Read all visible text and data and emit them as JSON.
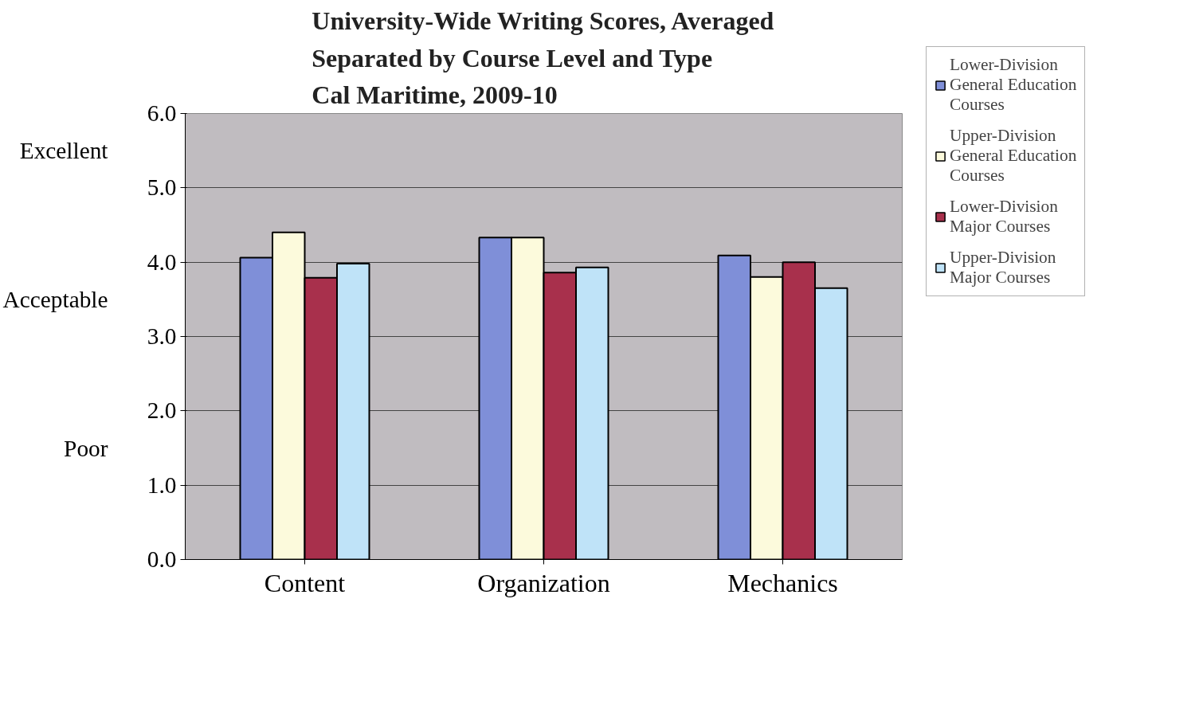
{
  "chart_data": {
    "type": "bar",
    "title": "University-Wide Writing Scores, Averaged\nSeparated by Course Level and Type\nCal Maritime, 2009-10",
    "categories": [
      "Content",
      "Organization",
      "Mechanics"
    ],
    "series": [
      {
        "name": "Lower-Division\nGeneral Education\nCourses",
        "color": "#7f8fd8",
        "values": [
          4.06,
          4.33,
          4.09
        ]
      },
      {
        "name": "Upper-Division\nGeneral Education\nCourses",
        "color": "#fcfadc",
        "values": [
          4.4,
          4.33,
          3.8
        ]
      },
      {
        "name": "Lower-Division\nMajor Courses",
        "color": "#a8304c",
        "values": [
          3.79,
          3.86,
          4.0
        ]
      },
      {
        "name": "Upper-Division\nMajor Courses",
        "color": "#bfe3f8",
        "values": [
          3.98,
          3.93,
          3.65
        ]
      }
    ],
    "ylim": [
      0,
      6
    ],
    "yticks": [
      {
        "value": 0,
        "label": "0.0"
      },
      {
        "value": 1,
        "label": "1.0"
      },
      {
        "value": 2,
        "label": "2.0"
      },
      {
        "value": 3,
        "label": "3.0"
      },
      {
        "value": 4,
        "label": "4.0"
      },
      {
        "value": 5,
        "label": "5.0"
      },
      {
        "value": 6,
        "label": "6.0"
      }
    ],
    "annotations": [
      "Excellent",
      "Acceptable",
      "Poor"
    ],
    "grid": "y",
    "legend": "right"
  }
}
